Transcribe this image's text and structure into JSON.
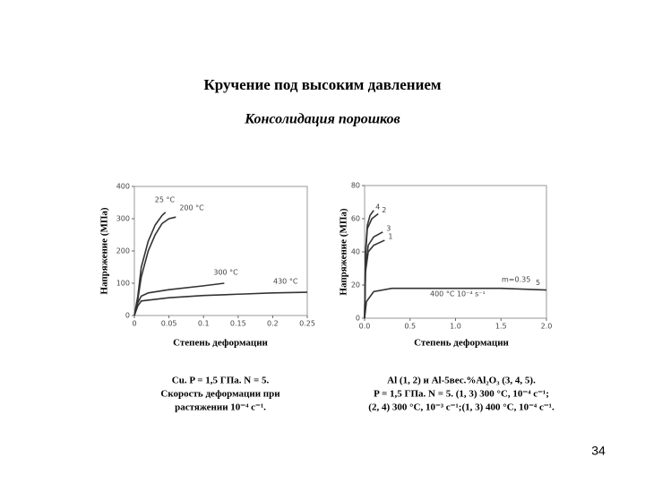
{
  "title": "Кручение под высоким давлением",
  "subtitle": "Консолидация порошков",
  "page_number": "34",
  "chart_data": [
    {
      "type": "line",
      "xlabel": "Степень деформации",
      "ylabel": "Напряжение (МПа)",
      "caption": [
        "Cu. P = 1,5 ГПа. N = 5.",
        "Скорость деформации при",
        "растяжении 10⁻⁴ с⁻¹."
      ],
      "xlim": [
        0,
        0.25
      ],
      "xticks": [
        0,
        0.05,
        0.1,
        0.15,
        0.2,
        0.25
      ],
      "ylim": [
        0,
        400
      ],
      "yticks": [
        0,
        100,
        200,
        300,
        400
      ],
      "series": [
        {
          "name": "25 °C",
          "color": "#333333",
          "x": [
            0,
            0.005,
            0.01,
            0.02,
            0.03,
            0.04,
            0.045
          ],
          "values": [
            0,
            60,
            150,
            230,
            280,
            310,
            320
          ]
        },
        {
          "name": "200 °C",
          "color": "#333333",
          "x": [
            0,
            0.005,
            0.01,
            0.02,
            0.03,
            0.04,
            0.05,
            0.06
          ],
          "values": [
            0,
            50,
            120,
            200,
            250,
            285,
            300,
            305
          ]
        },
        {
          "name": "300 °C",
          "color": "#333333",
          "x": [
            0,
            0.005,
            0.01,
            0.02,
            0.05,
            0.1,
            0.13
          ],
          "values": [
            0,
            40,
            60,
            70,
            80,
            92,
            100
          ]
        },
        {
          "name": "430 °C",
          "color": "#333333",
          "x": [
            0,
            0.005,
            0.01,
            0.05,
            0.1,
            0.15,
            0.2,
            0.25
          ],
          "values": [
            0,
            30,
            45,
            55,
            62,
            66,
            70,
            72
          ]
        }
      ]
    },
    {
      "type": "line",
      "xlabel": "Степень деформации",
      "ylabel": "Напряжение (МПа)",
      "caption": [
        "Al (1, 2) и Al-5вес.%Al₂O₃ (3, 4, 5).",
        "P = 1,5 ГПа. N = 5. (1, 3) 300 °C, 10⁻⁴ с⁻¹;",
        "(2, 4) 300 °C, 10⁻³ с⁻¹;(1, 3) 400 °C, 10⁻⁴ с⁻¹."
      ],
      "xlim": [
        0,
        2
      ],
      "xticks": [
        {
          "value": 0,
          "label": "0.0"
        },
        0.5,
        {
          "value": 1,
          "label": "1.0"
        },
        1.5,
        {
          "value": 2,
          "label": "2.0"
        }
      ],
      "ylim": [
        0,
        80
      ],
      "yticks": [
        0,
        20,
        40,
        60,
        80
      ],
      "annotations": [
        "m=0.35",
        "400 °C 10⁻⁴ s⁻¹"
      ],
      "series": [
        {
          "name": "4",
          "color": "#333333",
          "x": [
            0,
            0.01,
            0.03,
            0.06,
            0.1
          ],
          "values": [
            0,
            40,
            56,
            62,
            65
          ]
        },
        {
          "name": "2",
          "color": "#333333",
          "x": [
            0,
            0.01,
            0.03,
            0.08,
            0.15
          ],
          "values": [
            0,
            38,
            54,
            60,
            63
          ]
        },
        {
          "name": "3",
          "color": "#333333",
          "x": [
            0,
            0.01,
            0.04,
            0.1,
            0.2
          ],
          "values": [
            0,
            30,
            44,
            49,
            52
          ]
        },
        {
          "name": "1",
          "color": "#333333",
          "x": [
            0,
            0.01,
            0.04,
            0.1,
            0.22
          ],
          "values": [
            0,
            28,
            40,
            44,
            47
          ]
        },
        {
          "name": "5",
          "color": "#333333",
          "x": [
            0,
            0.02,
            0.1,
            0.3,
            0.8,
            1.5,
            2.0
          ],
          "values": [
            0,
            10,
            16,
            18,
            18,
            18,
            17
          ]
        }
      ]
    }
  ]
}
